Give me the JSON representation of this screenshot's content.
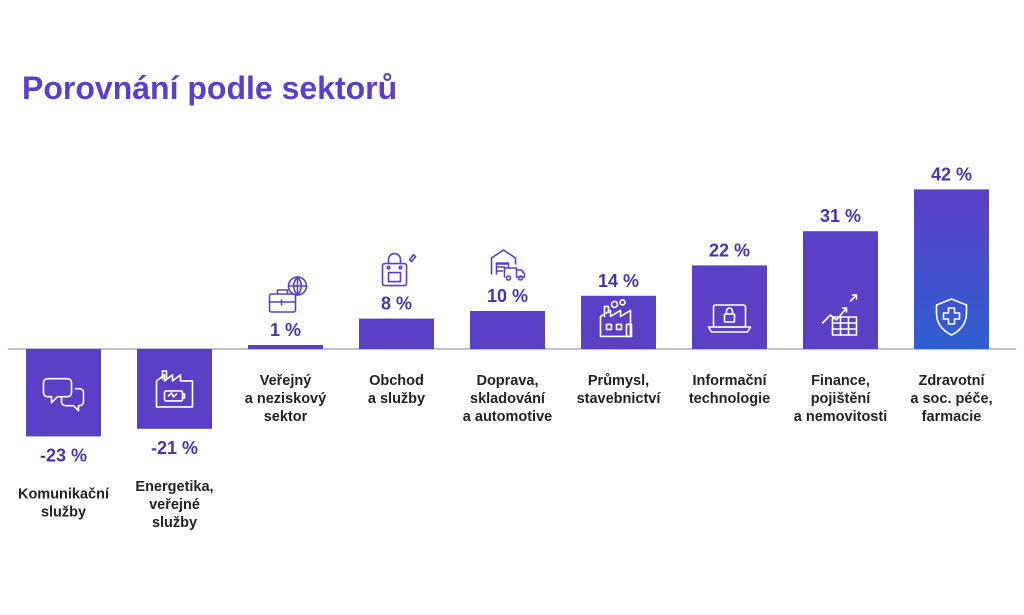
{
  "page": {
    "title": "Porovnání podle sektorů"
  },
  "colors": {
    "bar": "#5b3fc4",
    "bar_highlight": "#2f5fd0",
    "value_text": "#4a32a8",
    "label_text": "#222222",
    "axis": "#9a9ab0",
    "icon_on_bar": "#ffffff",
    "icon_off_bar": "#5b3fc4"
  },
  "chart_data": {
    "type": "bar",
    "title": "Porovnání podle sektorů",
    "ylim": [
      -25,
      45
    ],
    "unit": "%",
    "grid": false,
    "bars": [
      {
        "value": -23,
        "value_label": "-23 %",
        "label_lines": [
          "Komunikační",
          "služby"
        ],
        "icon": "chat-bubbles-icon"
      },
      {
        "value": -21,
        "value_label": "-21 %",
        "label_lines": [
          "Energetika,",
          "veřejné",
          "služby"
        ],
        "icon": "factory-battery-icon"
      },
      {
        "value": 1,
        "value_label": "1 %",
        "label_lines": [
          "Veřejný",
          "a neziskový",
          "sektor"
        ],
        "icon": "briefcase-globe-icon"
      },
      {
        "value": 8,
        "value_label": "8 %",
        "label_lines": [
          "Obchod",
          "a služby"
        ],
        "icon": "shopping-bag-icon"
      },
      {
        "value": 10,
        "value_label": "10 %",
        "label_lines": [
          "Doprava,",
          "skladování",
          "a automotive"
        ],
        "icon": "warehouse-truck-icon"
      },
      {
        "value": 14,
        "value_label": "14 %",
        "label_lines": [
          "Průmysl,",
          "stavebnictví"
        ],
        "icon": "factory-icon"
      },
      {
        "value": 22,
        "value_label": "22 %",
        "label_lines": [
          "Informační",
          "technologie"
        ],
        "icon": "laptop-lock-icon"
      },
      {
        "value": 31,
        "value_label": "31 %",
        "label_lines": [
          "Finance,",
          "pojištění",
          "a nemovitosti"
        ],
        "icon": "growth-chart-icon"
      },
      {
        "value": 42,
        "value_label": "42 %",
        "label_lines": [
          "Zdravotní",
          "a soc. péče,",
          "farmacie"
        ],
        "icon": "medical-shield-icon"
      }
    ]
  }
}
